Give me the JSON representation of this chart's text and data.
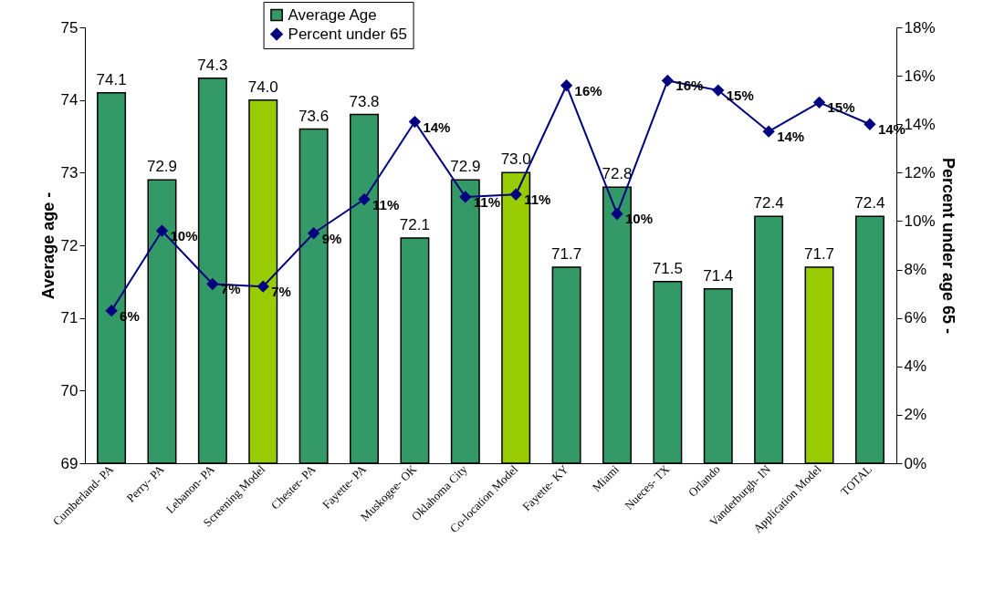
{
  "chart_data": {
    "type": "bar",
    "ylabel": "Average age     -",
    "y2label": "Percent under age 65     -",
    "categories": [
      "Cumberland- PA",
      "Perry- PA",
      "Lebanon- PA",
      "Screening Model",
      "Chester- PA",
      "Fayette- PA",
      "Muskogee- OK",
      "Oklahoma City",
      "Co-location Model",
      "Fayette- KY",
      "Miami",
      "Nueces- TX",
      "Orlando",
      "Vanderburgh- IN",
      "Application Model",
      "TOTAL"
    ],
    "series": [
      {
        "name": "Average Age",
        "color": "#339966",
        "colors": [
          "#339966",
          "#339966",
          "#339966",
          "#99cc00",
          "#339966",
          "#339966",
          "#339966",
          "#339966",
          "#99cc00",
          "#339966",
          "#339966",
          "#339966",
          "#339966",
          "#339966",
          "#99cc00",
          "#339966"
        ],
        "values": [
          74.1,
          72.9,
          74.3,
          74.0,
          73.6,
          73.8,
          72.1,
          72.9,
          73.0,
          71.7,
          72.8,
          71.5,
          71.4,
          72.4,
          71.7,
          72.4
        ],
        "value_labels": [
          "74.1",
          "72.9",
          "74.3",
          "74.0",
          "73.6",
          "73.8",
          "72.1",
          "72.9",
          "73.0",
          "71.7",
          "72.8",
          "71.5",
          "71.4",
          "72.4",
          "71.7",
          "72.4"
        ]
      },
      {
        "name": "Percent under 65",
        "type": "line",
        "axis": "y2",
        "color": "#000080",
        "marker": "diamond",
        "values": [
          6.3,
          9.6,
          7.4,
          7.3,
          9.5,
          10.9,
          14.1,
          11.0,
          11.1,
          15.6,
          10.3,
          15.8,
          15.4,
          13.7,
          14.9,
          14.0
        ],
        "value_labels": [
          "6%",
          "10%",
          "7%",
          "7%",
          "9%",
          "11%",
          "14%",
          "11%",
          "11%",
          "16%",
          "10%",
          "16%",
          "15%",
          "14%",
          "15%",
          "14%"
        ]
      }
    ],
    "ylim": [
      69,
      75
    ],
    "yticks": [
      69,
      70,
      71,
      72,
      73,
      74,
      75
    ],
    "y2lim": [
      0,
      18
    ],
    "y2ticks": [
      {
        "value": 0,
        "label": "0%"
      },
      {
        "value": 2,
        "label": "2%"
      },
      {
        "value": 4,
        "label": "4%"
      },
      {
        "value": 6,
        "label": "6%"
      },
      {
        "value": 8,
        "label": "8%"
      },
      {
        "value": 10,
        "label": "10%"
      },
      {
        "value": 12,
        "label": "12%"
      },
      {
        "value": 14,
        "label": "14%"
      },
      {
        "value": 16,
        "label": "16%"
      },
      {
        "value": 18,
        "label": "18%"
      }
    ],
    "grid": false,
    "legend": "top"
  }
}
